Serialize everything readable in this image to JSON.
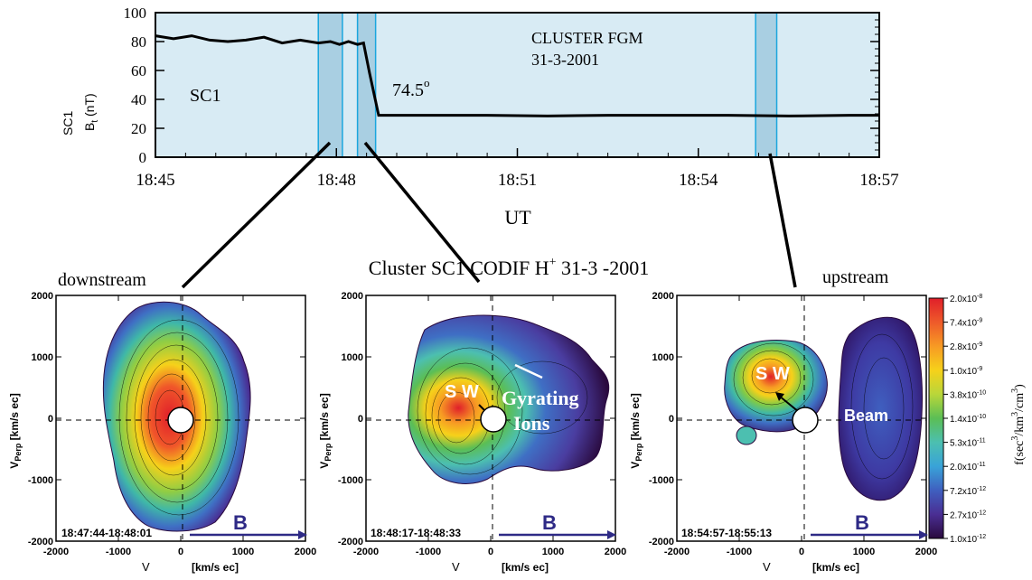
{
  "chart_data": [
    {
      "type": "line",
      "name": "magnetic-field-timeseries",
      "ylabel_main": "SC1",
      "ylabel_sub": "B",
      "ylabel_subscript": "t",
      "ylabel_unit": "(nT)",
      "xlabel": "UT",
      "xticks": [
        "18:45",
        "18:48",
        "18:51",
        "18:54",
        "18:57"
      ],
      "xtick_minutes": [
        0,
        3,
        6,
        9,
        12
      ],
      "yticks": [
        "100",
        "80",
        "60",
        "40",
        "20",
        "0"
      ],
      "ytick_values": [
        100,
        80,
        60,
        40,
        20,
        0
      ],
      "xlim": [
        0,
        12
      ],
      "ylim": [
        0,
        100
      ],
      "annotations": {
        "instrument": "CLUSTER FGM",
        "date": "31-3-2001",
        "spacecraft": "SC1",
        "angle": "74.5",
        "angle_sup": "o"
      },
      "series": [
        {
          "x": [
            0,
            0.3,
            0.6,
            0.9,
            1.2,
            1.5,
            1.8,
            2.1,
            2.4,
            2.7,
            2.9,
            3.05,
            3.2,
            3.35,
            3.45,
            3.55,
            3.7,
            4.5,
            5.5,
            6.5,
            7.5,
            8.5,
            9.5,
            10.5,
            11.5,
            12
          ],
          "values": [
            84,
            82,
            84,
            81,
            80,
            81,
            83,
            79,
            81,
            79,
            80,
            78,
            80,
            78,
            79,
            58,
            29,
            29,
            29,
            28.5,
            29,
            29,
            29,
            28.5,
            29,
            29
          ]
        }
      ],
      "highlight_intervals": [
        [
          2.7,
          3.1
        ],
        [
          3.35,
          3.65
        ],
        [
          9.95,
          10.3
        ]
      ],
      "highlight_color": "#a9cfe2",
      "background_color": "#d8ebf4"
    }
  ],
  "figure_title": "Cluster SC1 CODIF H",
  "figure_title_sup": "+",
  "figure_title_rest": " 31-3 -2001",
  "panels": [
    {
      "label": "downstream",
      "time": "18:47:44-18:48:01",
      "arrow_label": "B",
      "annotations": []
    },
    {
      "label": "",
      "time": "18:48:17-18:48:33",
      "arrow_label": "B",
      "annotations": [
        "S W",
        "Gyrating",
        "Ions"
      ]
    },
    {
      "label": "upstream",
      "time": "18:54:57-18:55:13",
      "arrow_label": "B",
      "annotations": [
        "S W",
        "Beam"
      ]
    }
  ],
  "panel_axes": {
    "xticks": [
      "-2000",
      "-1000",
      "0",
      "1000",
      "2000"
    ],
    "xtick_values": [
      -2000,
      -1000,
      0,
      1000,
      2000
    ],
    "yticks": [
      "2000",
      "1000",
      "0",
      "-1000",
      "-2000"
    ],
    "ytick_values": [
      2000,
      1000,
      0,
      -1000,
      -2000
    ],
    "xlabel_main": "V",
    "xlabel_unit": "[km/s ec]",
    "ylabel_main": "V",
    "ylabel_sub": "Perp",
    "ylabel_unit": " [km/s ec]"
  },
  "colorbar": {
    "labels": [
      "2.0x10",
      "7.4x10",
      "2.8x10",
      "1.0x10",
      "3.8x10",
      "1.4x10",
      "5.3x10",
      "2.0x10",
      "7.2x10",
      "2.7x10",
      "1.0x10"
    ],
    "exponents": [
      "-8",
      "-9",
      "-9",
      "-9",
      "-10",
      "-10",
      "-11",
      "-11",
      "-12",
      "-12",
      "-12"
    ],
    "colors": [
      "#e01f2a",
      "#ee5a2a",
      "#f79a24",
      "#f6d11a",
      "#b9d63a",
      "#5bbe55",
      "#4cbfb0",
      "#39a3d8",
      "#3f5fbf",
      "#4a2e93",
      "#2a0a3e"
    ],
    "title": "f(sec",
    "title_sup1": "3",
    "title_mid": "/km",
    "title_sup2": "3",
    "title_mid2": "/cm",
    "title_sup3": "3",
    "title_end": ")"
  }
}
